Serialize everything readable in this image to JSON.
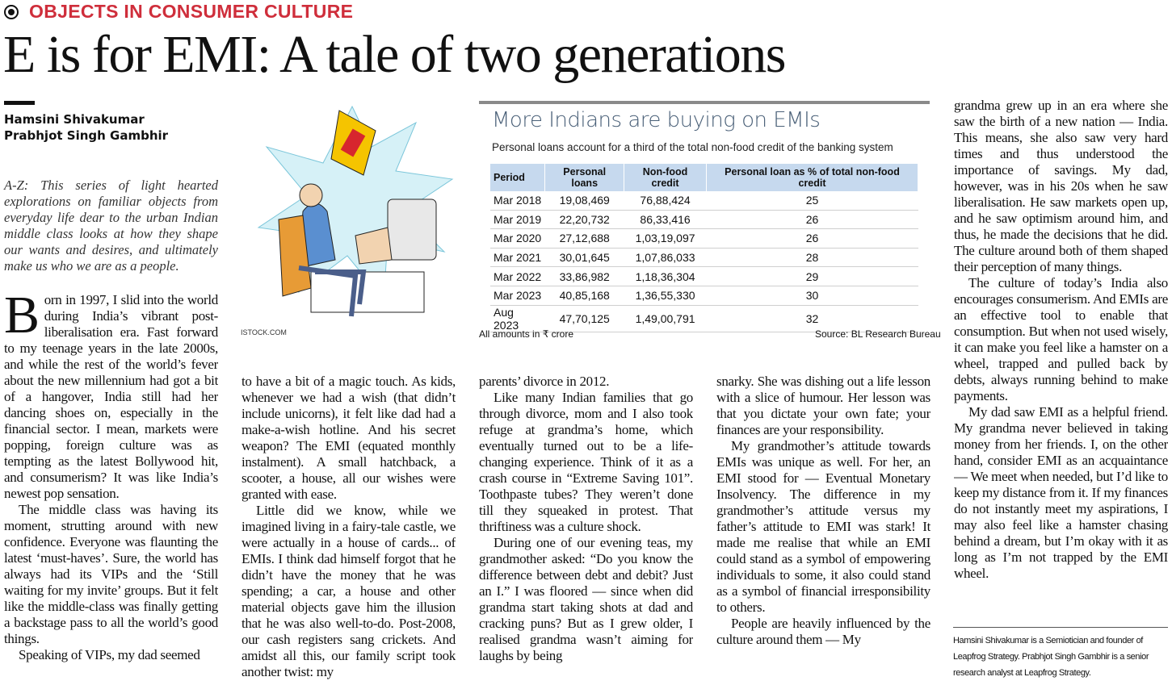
{
  "header": {
    "section": "OBJECTS IN CONSUMER CULTURE",
    "title": "E is for EMI: A tale of two generations"
  },
  "authors": [
    "Hamsini Shivakumar",
    "Prabhjot Singh Gambhir"
  ],
  "intro": "A-Z: This series of light hearted explorations on familiar objects from everyday life dear to the urban Indian middle class looks at how they shape our wants and desires, and ultimately make us who we are as a people.",
  "image_credit": "ISTOCK.COM",
  "table": {
    "title": "More Indians are buying on EMIs",
    "subtitle": "Personal loans account for a third of the total non-food credit of the banking system",
    "columns": [
      "Period",
      "Personal loans",
      "Non-food credit",
      "Personal loan as % of total non-food credit"
    ],
    "rows": [
      [
        "Mar 2018",
        "19,08,469",
        "76,88,424",
        "25"
      ],
      [
        "Mar 2019",
        "22,20,732",
        "86,33,416",
        "26"
      ],
      [
        "Mar 2020",
        "27,12,688",
        "1,03,19,097",
        "26"
      ],
      [
        "Mar 2021",
        "30,01,645",
        "1,07,86,033",
        "28"
      ],
      [
        "Mar 2022",
        "33,86,982",
        "1,18,36,304",
        "29"
      ],
      [
        "Mar 2023",
        "40,85,168",
        "1,36,55,330",
        "30"
      ],
      [
        "Aug 2023",
        "47,70,125",
        "1,49,00,791",
        "32"
      ]
    ],
    "note": "All amounts in ₹ crore",
    "source": "Source: BL Research Bureau"
  },
  "columns": [
    {
      "paragraphs": [
        "Born in 1997, I slid into the world during India’s vibrant post-liberalisation era. Fast forward to my teenage years in the late 2000s, and while the rest of the world’s fever about the new millennium had got a bit of a hangover, India still had her dancing shoes on, especially in the financial sector. I mean, markets were popping, foreign culture was as tempting as the latest Bollywood hit, and consumerism? It was like India’s newest pop sensation.",
        "The middle class was having its moment, strutting around with new confidence. Everyone was flaunting the latest ‘must-haves’. Sure, the world has always had its VIPs and the ‘Still waiting for my invite’ groups. But it felt like the middle-class was finally getting a backstage pass to all the world’s good things.",
        "Speaking of VIPs, my dad seemed"
      ]
    },
    {
      "paragraphs": [
        "to have a bit of a magic touch. As kids, whenever we had a wish (that didn’t include unicorns), it felt like dad had a make-a-wish hotline. And his secret weapon? The EMI (equated monthly instalment). A small hatchback, a scooter, a house, all our wishes were granted with ease.",
        "Little did we know, while we imagined living in a fairy-tale castle, we were actually in a house of cards... of EMIs. I think dad himself forgot that he didn’t have the money that he was spending; a car, a house and other material objects gave him the illusion that he was also well-to-do. Post-2008, our cash registers sang crickets. And amidst all this, our family script took another twist: my"
      ]
    },
    {
      "paragraphs": [
        "parents’ divorce in 2012.",
        "Like many Indian families that go through divorce, mom and I also took refuge at grandma’s home, which eventually turned out to be a life-changing experience. Think of it as a crash course in “Extreme Saving 101”. Toothpaste tubes? They weren’t done till they squeaked in protest. That thriftiness was a culture shock.",
        "During one of our evening teas, my grandmother asked: “Do you know the difference between debt and debit? Just an I.” I was floored — since when did grandma start taking shots at dad and cracking puns? But as I grew older, I realised grandma wasn’t aiming for laughs by being"
      ]
    },
    {
      "paragraphs": [
        "snarky. She was dishing out a life lesson with a slice of humour. Her lesson was that you dictate your own fate; your finances are your responsibility.",
        "My grandmother’s attitude towards EMIs was unique as well. For her, an EMI stood for — Eventual Monetary Insolvency. The difference in my grandmother’s attitude versus my father’s attitude to EMI was stark! It made me realise that while an EMI could stand as a symbol of empowering individuals to some, it also could stand as a symbol of financial irresponsibility to others.",
        "People are heavily influenced by the culture around them — My"
      ]
    },
    {
      "paragraphs": [
        "grandma grew up in an era where she saw the birth of a new nation — India. This means, she also saw very hard times and thus understood the importance of savings. My dad, however, was in his 20s when he saw liberalisation. He saw markets open up, and he saw optimism around him, and thus, he made the decisions that he did. The culture around both of them shaped their perception of many things.",
        "The culture of today’s India also encourages consumerism. And EMIs are an effective tool to enable that consumption. But when not used wisely, it can make you feel like a hamster on a wheel, trapped and pulled back by debts, always running behind to make payments.",
        "My dad saw EMI as a helpful friend. My grandma never believed in taking money from her friends. I, on the other hand, consider EMI as an acquaintance — We meet when needed, but I’d like to keep my distance from it. If my finances do not instantly meet my aspirations, I may also feel like a hamster chasing behind a dream, but I’m okay with it as long as I’m not trapped by the EMI wheel."
      ]
    }
  ],
  "footnote": "Hamsini Shivakumar is a Semiotician and founder of Leapfrog Strategy. Prabhjot Singh Gambhir is a senior research analyst at Leapfrog Strategy."
}
